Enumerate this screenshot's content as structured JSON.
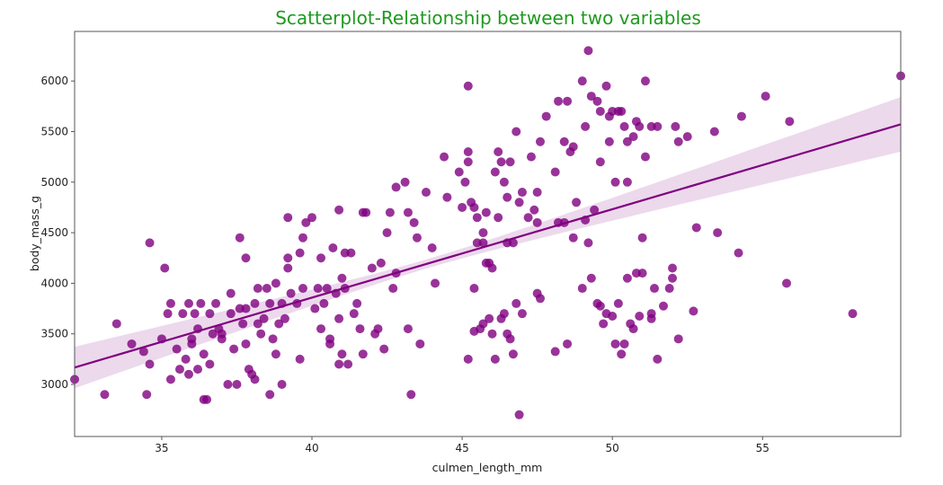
{
  "chart_data": {
    "type": "scatter",
    "title": "Scatterplot-Relationship between two variables",
    "xlabel": "culmen_length_mm",
    "ylabel": "body_mass_g",
    "xlim": [
      32.1,
      59.6
    ],
    "ylim": [
      2485,
      6490
    ],
    "xticks": [
      35,
      40,
      45,
      50,
      55
    ],
    "yticks": [
      3000,
      3500,
      4000,
      4500,
      5000,
      5500,
      6000
    ],
    "grid": false,
    "colors": {
      "title": "#1e9a1e",
      "points": "#800080",
      "line": "#800080",
      "band": "#800080"
    },
    "regression": {
      "intercept": 362,
      "slope": 87.4,
      "ci_center": 43.9,
      "ci_min_halfwidth": 45,
      "ci_curvature": 287
    },
    "points": [
      [
        32.1,
        3050
      ],
      [
        33.1,
        2900
      ],
      [
        33.5,
        3600
      ],
      [
        34.0,
        3400
      ],
      [
        34.4,
        3325
      ],
      [
        34.5,
        2900
      ],
      [
        34.6,
        4400
      ],
      [
        34.6,
        3200
      ],
      [
        35.0,
        3450
      ],
      [
        35.1,
        4150
      ],
      [
        35.2,
        3700
      ],
      [
        35.3,
        3800
      ],
      [
        35.3,
        3050
      ],
      [
        35.5,
        3350
      ],
      [
        35.6,
        3150
      ],
      [
        35.7,
        3700
      ],
      [
        35.9,
        3800
      ],
      [
        35.9,
        3100
      ],
      [
        36.0,
        3450
      ],
      [
        36.0,
        3400
      ],
      [
        36.2,
        3550
      ],
      [
        36.2,
        3150
      ],
      [
        36.3,
        3800
      ],
      [
        36.4,
        3300
      ],
      [
        36.4,
        2850
      ],
      [
        36.5,
        2850
      ],
      [
        36.6,
        3700
      ],
      [
        36.6,
        3200
      ],
      [
        36.7,
        3500
      ],
      [
        36.8,
        3800
      ],
      [
        37.0,
        3450
      ],
      [
        37.0,
        3500
      ],
      [
        37.2,
        3000
      ],
      [
        37.3,
        3900
      ],
      [
        37.3,
        3700
      ],
      [
        37.5,
        3000
      ],
      [
        37.6,
        4450
      ],
      [
        37.6,
        3750
      ],
      [
        37.7,
        3600
      ],
      [
        37.8,
        3750
      ],
      [
        37.8,
        4250
      ],
      [
        37.8,
        3400
      ],
      [
        38.0,
        3100
      ],
      [
        38.1,
        3800
      ],
      [
        38.1,
        3050
      ],
      [
        38.2,
        3950
      ],
      [
        38.2,
        3600
      ],
      [
        38.3,
        3500
      ],
      [
        38.5,
        3950
      ],
      [
        38.6,
        3800
      ],
      [
        38.6,
        2900
      ],
      [
        38.7,
        3450
      ],
      [
        38.8,
        4000
      ],
      [
        38.8,
        3300
      ],
      [
        38.9,
        3600
      ],
      [
        39.0,
        3800
      ],
      [
        39.1,
        3650
      ],
      [
        39.2,
        4150
      ],
      [
        39.2,
        4650
      ],
      [
        39.2,
        4250
      ],
      [
        39.5,
        3800
      ],
      [
        39.6,
        4300
      ],
      [
        39.6,
        3250
      ],
      [
        39.7,
        4450
      ],
      [
        39.7,
        3950
      ],
      [
        39.8,
        4600
      ],
      [
        40.0,
        4650
      ],
      [
        40.1,
        3750
      ],
      [
        40.2,
        3950
      ],
      [
        40.3,
        4250
      ],
      [
        40.3,
        3550
      ],
      [
        40.5,
        3950
      ],
      [
        40.6,
        3400
      ],
      [
        40.6,
        3450
      ],
      [
        40.7,
        4350
      ],
      [
        40.8,
        3900
      ],
      [
        40.9,
        3200
      ],
      [
        41.0,
        3300
      ],
      [
        41.1,
        4300
      ],
      [
        41.1,
        3950
      ],
      [
        41.3,
        4300
      ],
      [
        41.4,
        3700
      ],
      [
        41.5,
        3800
      ],
      [
        41.6,
        3550
      ],
      [
        41.7,
        3300
      ],
      [
        41.8,
        4700
      ],
      [
        42.0,
        4150
      ],
      [
        42.1,
        3500
      ],
      [
        42.2,
        3550
      ],
      [
        42.3,
        4200
      ],
      [
        42.4,
        3350
      ],
      [
        42.5,
        4500
      ],
      [
        42.7,
        3950
      ],
      [
        42.8,
        4100
      ],
      [
        43.2,
        3550
      ],
      [
        43.3,
        2900
      ],
      [
        43.6,
        3400
      ],
      [
        44.1,
        4000
      ],
      [
        36.9,
        3550
      ],
      [
        37.9,
        3150
      ],
      [
        39.0,
        3000
      ],
      [
        39.3,
        3900
      ],
      [
        40.4,
        3800
      ],
      [
        41.0,
        4050
      ],
      [
        41.2,
        3200
      ],
      [
        38.4,
        3650
      ],
      [
        36.1,
        3700
      ],
      [
        35.8,
        3250
      ],
      [
        37.4,
        3350
      ],
      [
        40.9,
        3650
      ],
      [
        40.9,
        4725
      ],
      [
        41.7,
        4700
      ],
      [
        42.6,
        4700
      ],
      [
        42.8,
        4950
      ],
      [
        43.1,
        5000
      ],
      [
        43.2,
        4700
      ],
      [
        43.4,
        4600
      ],
      [
        43.5,
        4450
      ],
      [
        43.8,
        4900
      ],
      [
        44.0,
        4350
      ],
      [
        44.4,
        5250
      ],
      [
        44.5,
        4850
      ],
      [
        44.9,
        5100
      ],
      [
        45.0,
        4750
      ],
      [
        45.1,
        5000
      ],
      [
        45.2,
        5950
      ],
      [
        45.2,
        5300
      ],
      [
        45.2,
        5200
      ],
      [
        45.3,
        4800
      ],
      [
        45.4,
        4750
      ],
      [
        45.5,
        4650
      ],
      [
        45.5,
        4400
      ],
      [
        45.7,
        4500
      ],
      [
        45.8,
        4700
      ],
      [
        46.1,
        5100
      ],
      [
        46.2,
        5300
      ],
      [
        46.2,
        4650
      ],
      [
        46.4,
        5000
      ],
      [
        46.5,
        4850
      ],
      [
        46.6,
        5200
      ],
      [
        46.8,
        5500
      ],
      [
        46.9,
        4800
      ],
      [
        47.0,
        4900
      ],
      [
        47.3,
        5250
      ],
      [
        47.5,
        4900
      ],
      [
        47.6,
        5400
      ],
      [
        47.8,
        5650
      ],
      [
        48.1,
        5100
      ],
      [
        48.2,
        5800
      ],
      [
        48.4,
        5400
      ],
      [
        48.5,
        5800
      ],
      [
        48.7,
        5350
      ],
      [
        49.0,
        6000
      ],
      [
        49.1,
        5550
      ],
      [
        49.2,
        6300
      ],
      [
        49.3,
        5850
      ],
      [
        49.5,
        5800
      ],
      [
        49.6,
        5700
      ],
      [
        49.8,
        5950
      ],
      [
        50.0,
        5700
      ],
      [
        50.1,
        5000
      ],
      [
        50.2,
        5700
      ],
      [
        50.4,
        5550
      ],
      [
        50.5,
        5400
      ],
      [
        50.7,
        5450
      ],
      [
        50.8,
        5600
      ],
      [
        51.1,
        6000
      ],
      [
        51.1,
        5250
      ],
      [
        51.3,
        5550
      ],
      [
        51.5,
        5550
      ],
      [
        52.1,
        5550
      ],
      [
        52.2,
        5400
      ],
      [
        52.5,
        5450
      ],
      [
        53.4,
        5500
      ],
      [
        54.3,
        5650
      ],
      [
        55.1,
        5850
      ],
      [
        55.9,
        5600
      ],
      [
        59.6,
        6050
      ],
      [
        47.2,
        4650
      ],
      [
        48.4,
        4600
      ],
      [
        48.7,
        4450
      ],
      [
        49.1,
        4625
      ],
      [
        49.4,
        4725
      ],
      [
        50.5,
        5000
      ],
      [
        51.0,
        4450
      ],
      [
        50.9,
        5550
      ],
      [
        49.9,
        5400
      ],
      [
        48.6,
        5300
      ],
      [
        46.3,
        5200
      ],
      [
        45.8,
        4200
      ],
      [
        46.0,
        4150
      ],
      [
        45.9,
        4200
      ],
      [
        46.5,
        4400
      ],
      [
        47.4,
        4725
      ],
      [
        48.2,
        4600
      ],
      [
        49.6,
        5200
      ],
      [
        48.8,
        4800
      ],
      [
        46.7,
        4400
      ],
      [
        50.3,
        5700
      ],
      [
        49.9,
        5650
      ],
      [
        45.2,
        3250
      ],
      [
        45.4,
        3525
      ],
      [
        45.6,
        3550
      ],
      [
        45.7,
        3600
      ],
      [
        45.9,
        3650
      ],
      [
        46.0,
        3500
      ],
      [
        46.1,
        3250
      ],
      [
        46.3,
        3650
      ],
      [
        46.4,
        3700
      ],
      [
        46.5,
        3500
      ],
      [
        46.6,
        3450
      ],
      [
        46.7,
        3300
      ],
      [
        46.9,
        2700
      ],
      [
        47.0,
        3700
      ],
      [
        47.5,
        3900
      ],
      [
        47.6,
        3850
      ],
      [
        48.1,
        3325
      ],
      [
        48.5,
        3400
      ],
      [
        49.0,
        3950
      ],
      [
        49.2,
        4400
      ],
      [
        49.3,
        4050
      ],
      [
        49.5,
        3800
      ],
      [
        49.6,
        3775
      ],
      [
        49.7,
        3600
      ],
      [
        49.8,
        3700
      ],
      [
        50.0,
        3675
      ],
      [
        50.1,
        3400
      ],
      [
        50.2,
        3800
      ],
      [
        50.3,
        3300
      ],
      [
        50.4,
        3400
      ],
      [
        50.5,
        4050
      ],
      [
        50.6,
        3600
      ],
      [
        50.7,
        3550
      ],
      [
        50.8,
        4100
      ],
      [
        50.9,
        3675
      ],
      [
        51.0,
        4100
      ],
      [
        51.3,
        3650
      ],
      [
        51.3,
        3700
      ],
      [
        51.4,
        3950
      ],
      [
        51.5,
        3250
      ],
      [
        51.7,
        3775
      ],
      [
        51.9,
        3950
      ],
      [
        52.0,
        4050
      ],
      [
        52.0,
        4150
      ],
      [
        52.2,
        3450
      ],
      [
        52.7,
        3725
      ],
      [
        52.8,
        4550
      ],
      [
        53.5,
        4500
      ],
      [
        54.2,
        4300
      ],
      [
        55.8,
        4000
      ],
      [
        58.0,
        3700
      ],
      [
        45.7,
        4400
      ],
      [
        45.4,
        3950
      ],
      [
        46.8,
        3800
      ],
      [
        47.5,
        4600
      ]
    ]
  }
}
